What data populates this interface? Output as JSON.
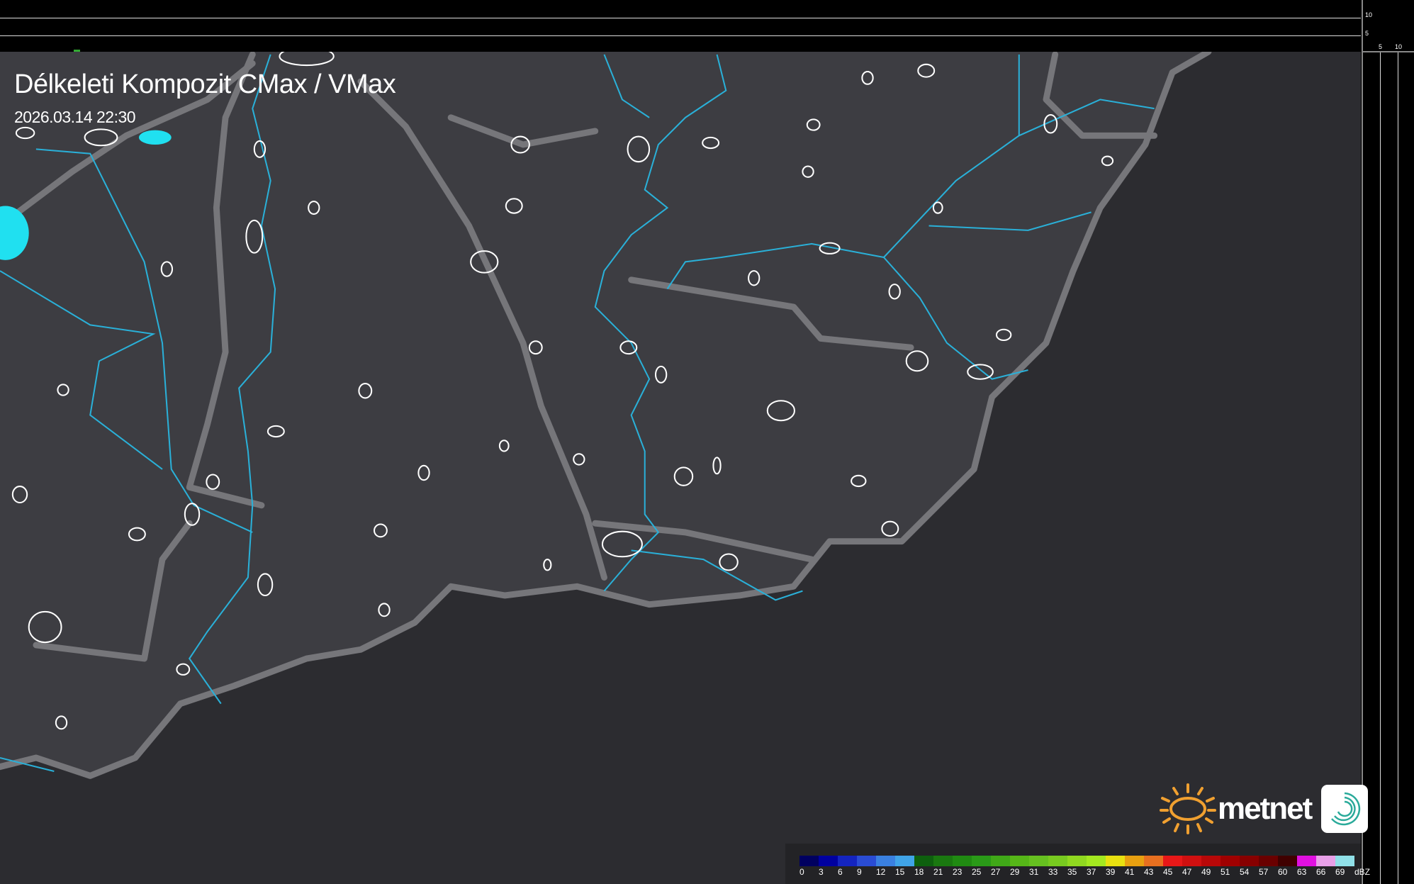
{
  "title": "Délkeleti Kompozit CMax / VMax",
  "timestamp": "2026.03.14 22:30",
  "scale_ticks": {
    "vertical": [
      "10",
      "5"
    ],
    "horizontal": [
      "5",
      "10"
    ]
  },
  "logo": {
    "text": "metnet"
  },
  "legend": {
    "unit": "dBZ",
    "labels": [
      "0",
      "3",
      "6",
      "9",
      "12",
      "15",
      "18",
      "21",
      "23",
      "25",
      "27",
      "29",
      "31",
      "33",
      "35",
      "37",
      "39",
      "41",
      "43",
      "45",
      "47",
      "49",
      "51",
      "54",
      "57",
      "60",
      "63",
      "66",
      "69"
    ],
    "colors": [
      "#000060",
      "#0000a0",
      "#1424c0",
      "#2a4cd4",
      "#3a80e0",
      "#40a4e8",
      "#0e600e",
      "#1a7810",
      "#208a12",
      "#2a9a18",
      "#40a818",
      "#56b618",
      "#66c020",
      "#78ca20",
      "#90d820",
      "#a4e820",
      "#e8e010",
      "#e8a010",
      "#e87020",
      "#e81818",
      "#d01010",
      "#b80808",
      "#a00000",
      "#880000",
      "#6a0000",
      "#400000",
      "#e010e0",
      "#e8a0e8",
      "#90e0e8"
    ]
  },
  "colors": {
    "background": "#3a3a3f",
    "outside": "#2c2c30",
    "border": "#7a7a7e",
    "river": "#2ab0d8",
    "settlement": "#ffffff",
    "echo": "#20e0f0",
    "logo_sun": "#f0a030"
  }
}
